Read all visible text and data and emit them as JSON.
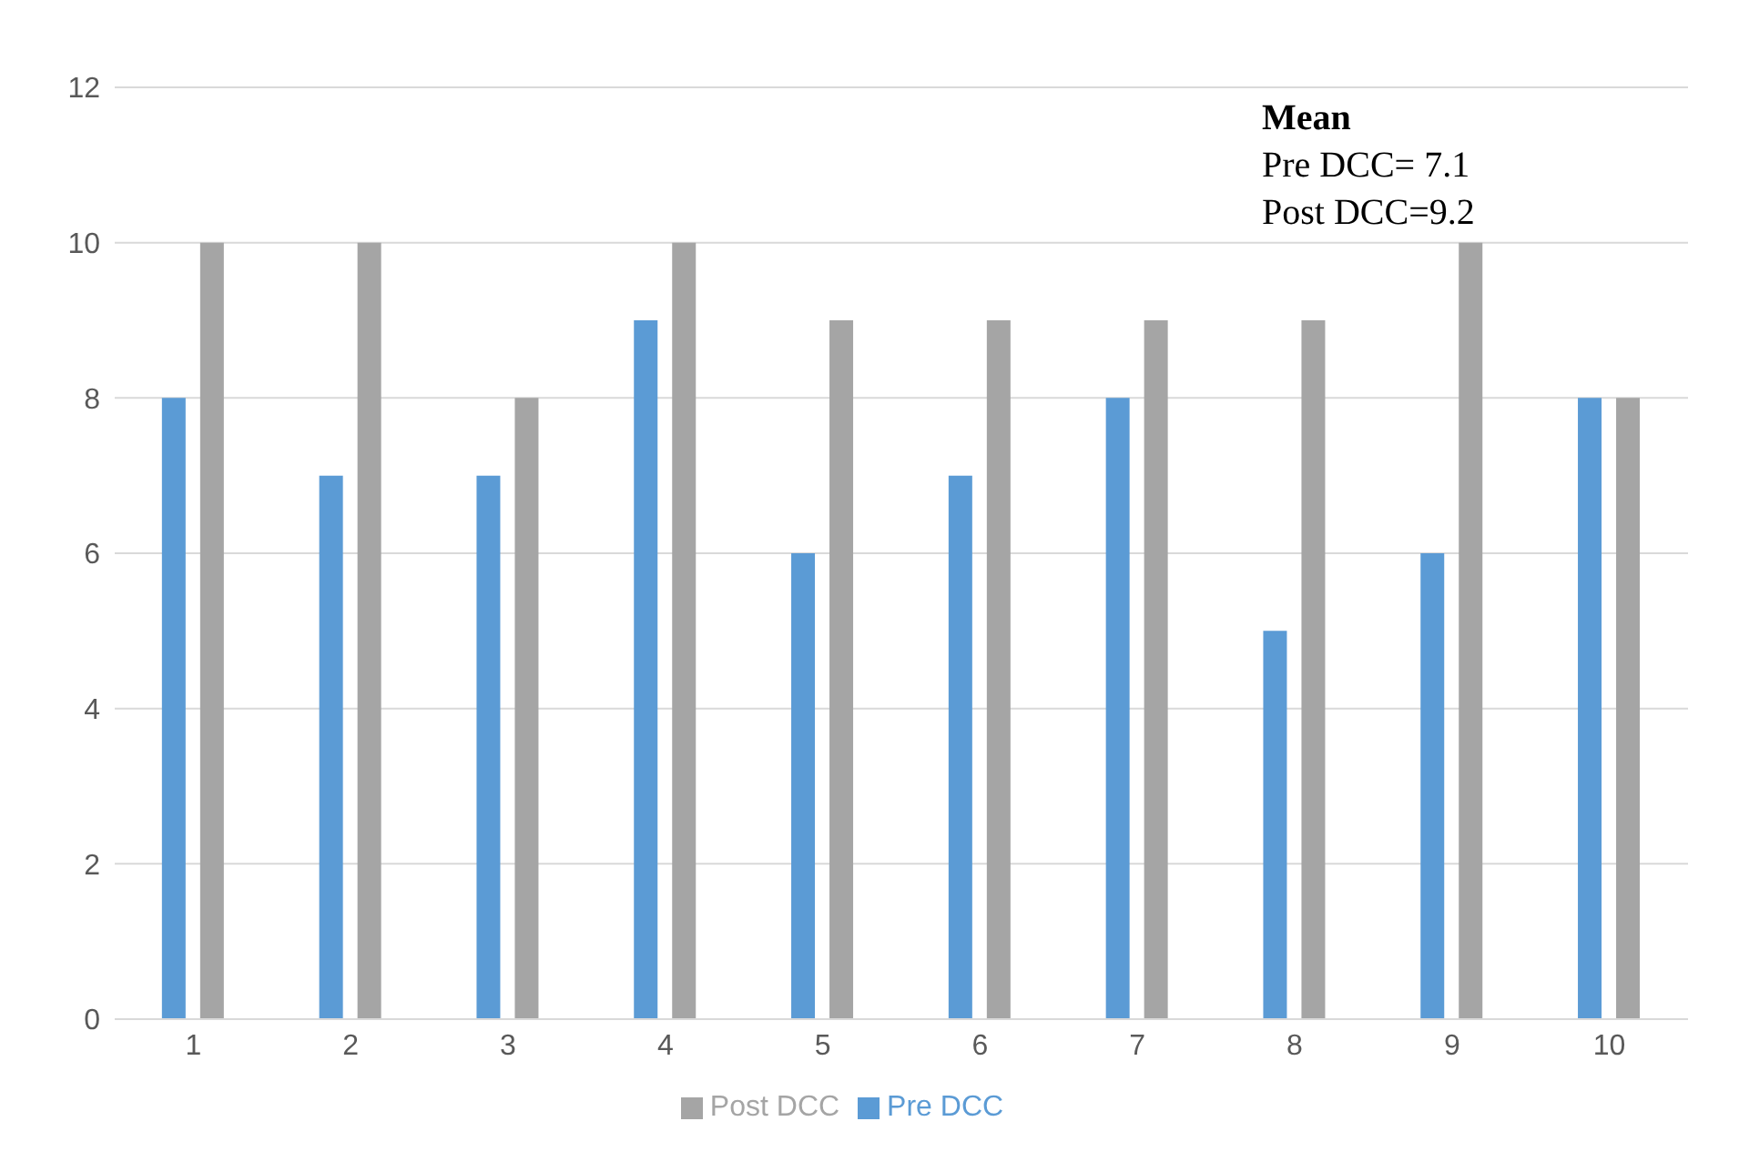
{
  "chart_data": {
    "type": "bar",
    "categories": [
      "1",
      "2",
      "3",
      "4",
      "5",
      "6",
      "7",
      "8",
      "9",
      "10"
    ],
    "series": [
      {
        "name": "Pre DCC",
        "color": "#5b9bd5",
        "values": [
          8,
          7,
          7,
          9,
          6,
          7,
          8,
          5,
          6,
          8
        ]
      },
      {
        "name": "Post DCC",
        "color": "#a5a5a5",
        "values": [
          10,
          10,
          8,
          10,
          9,
          9,
          9,
          9,
          10,
          8
        ]
      }
    ],
    "ylim": [
      0,
      12
    ],
    "yticks": [
      0,
      2,
      4,
      6,
      8,
      10,
      12
    ],
    "grid": "y",
    "legend": "bottom",
    "annotations": [
      "Mean",
      "Pre DCC= 7.1",
      "Post DCC=9.2"
    ]
  }
}
